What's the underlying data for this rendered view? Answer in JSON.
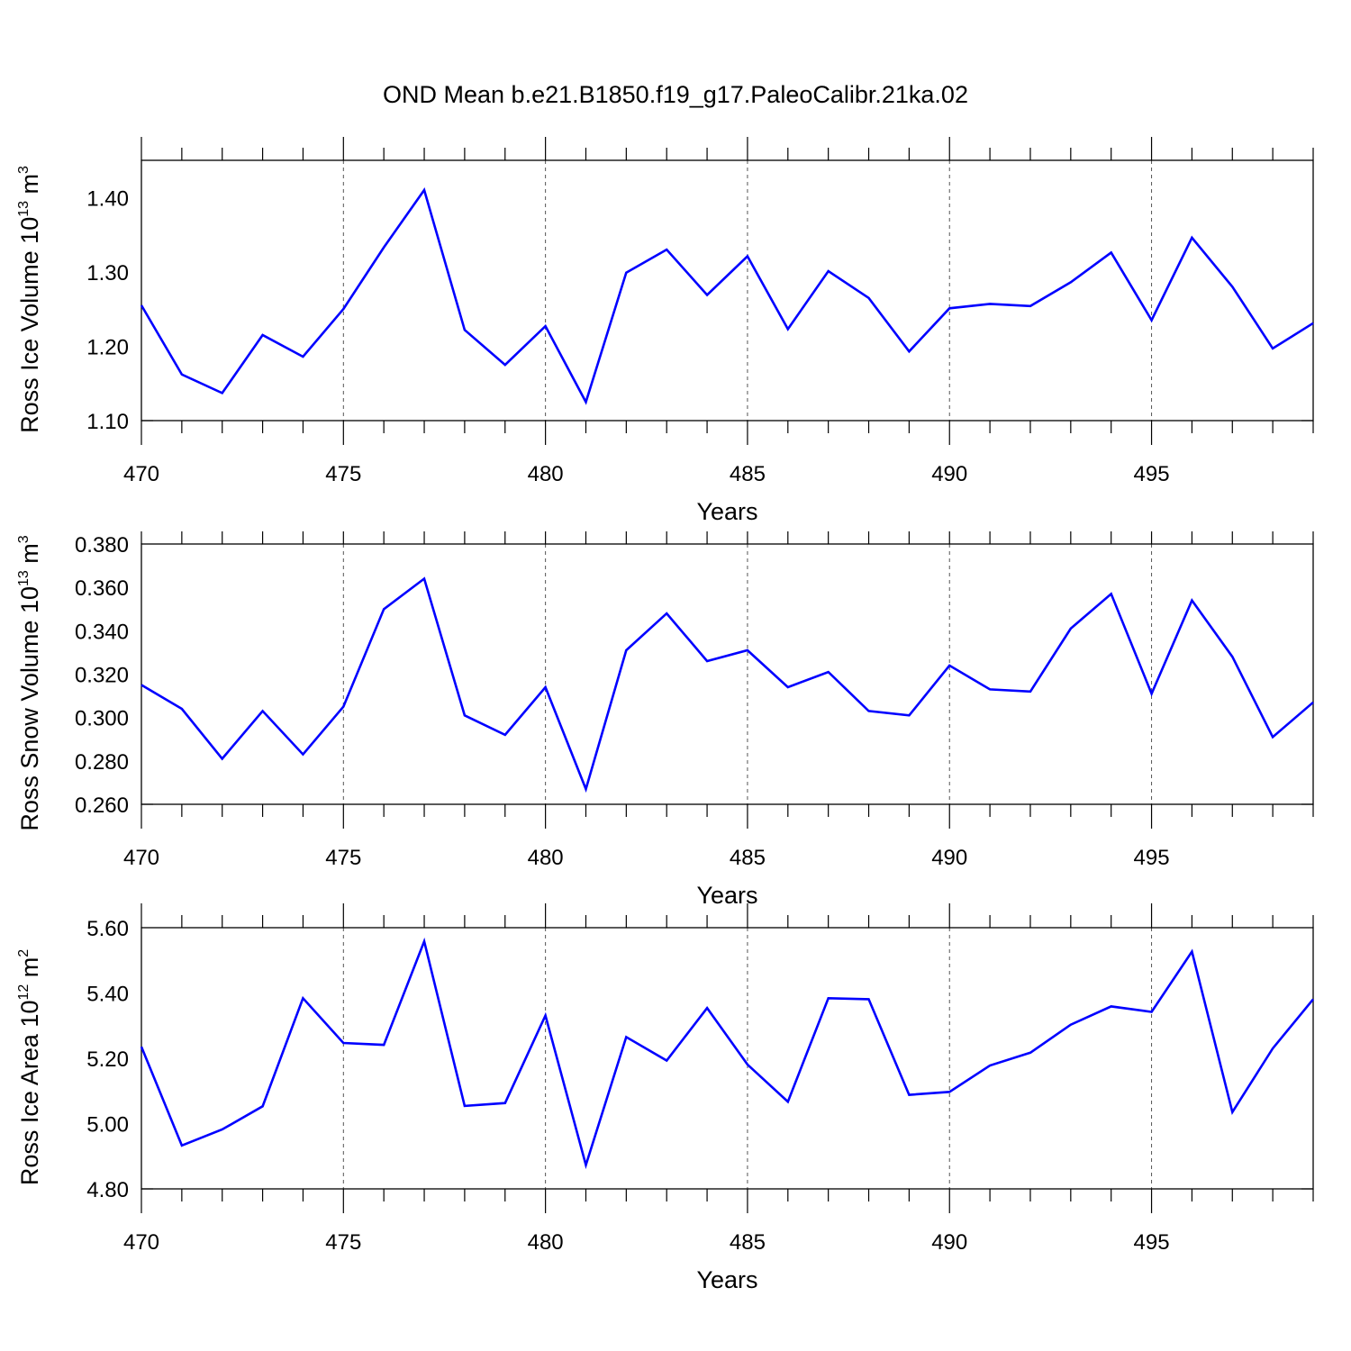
{
  "chart_data": [
    {
      "type": "line",
      "title": "OND Mean b.e21.B1850.f19_g17.PaleoCalibr.21ka.02",
      "xlabel": "Years",
      "ylabel": {
        "text": "Ross Ice Volume 10",
        "exp": "13",
        "unit": " m",
        "unit_exp": "3"
      },
      "x": [
        470,
        471,
        472,
        473,
        474,
        475,
        476,
        477,
        478,
        479,
        480,
        481,
        482,
        483,
        484,
        485,
        486,
        487,
        488,
        489,
        490,
        491,
        492,
        493,
        494,
        495,
        496,
        497,
        498,
        499
      ],
      "series": [
        {
          "values": [
            1.255,
            1.162,
            1.137,
            1.215,
            1.186,
            1.25,
            1.333,
            1.41,
            1.222,
            1.175,
            1.227,
            1.125,
            1.299,
            1.33,
            1.269,
            1.321,
            1.223,
            1.301,
            1.265,
            1.193,
            1.251,
            1.257,
            1.254,
            1.286,
            1.326,
            1.235,
            1.346,
            1.28,
            1.197,
            1.231
          ],
          "color": "#0000ff"
        }
      ],
      "xlim": [
        470,
        499
      ],
      "ylim": [
        1.1,
        1.45
      ],
      "xticks": [
        470,
        475,
        480,
        485,
        490,
        495
      ],
      "xtick_labels": [
        "470",
        "475",
        "480",
        "485",
        "490",
        "495"
      ],
      "yticks": [
        1.1,
        1.2,
        1.3,
        1.4
      ],
      "ytick_labels": [
        "1.10",
        "1.20",
        "1.30",
        "1.40"
      ],
      "grid": "vertical dashed at major x ticks"
    },
    {
      "type": "line",
      "xlabel": "Years",
      "ylabel": {
        "text": "Ross Snow Volume 10",
        "exp": "13",
        "unit": " m",
        "unit_exp": "3"
      },
      "x": [
        470,
        471,
        472,
        473,
        474,
        475,
        476,
        477,
        478,
        479,
        480,
        481,
        482,
        483,
        484,
        485,
        486,
        487,
        488,
        489,
        490,
        491,
        492,
        493,
        494,
        495,
        496,
        497,
        498,
        499
      ],
      "series": [
        {
          "values": [
            0.315,
            0.304,
            0.281,
            0.303,
            0.283,
            0.305,
            0.35,
            0.364,
            0.301,
            0.292,
            0.314,
            0.267,
            0.331,
            0.348,
            0.326,
            0.331,
            0.314,
            0.321,
            0.303,
            0.301,
            0.324,
            0.313,
            0.312,
            0.341,
            0.357,
            0.311,
            0.354,
            0.328,
            0.291,
            0.307
          ],
          "color": "#0000ff"
        }
      ],
      "xlim": [
        470,
        499
      ],
      "ylim": [
        0.26,
        0.38
      ],
      "xticks": [
        470,
        475,
        480,
        485,
        490,
        495
      ],
      "xtick_labels": [
        "470",
        "475",
        "480",
        "485",
        "490",
        "495"
      ],
      "yticks": [
        0.26,
        0.28,
        0.3,
        0.32,
        0.34,
        0.36,
        0.38
      ],
      "ytick_labels": [
        "0.260",
        "0.280",
        "0.300",
        "0.320",
        "0.340",
        "0.360",
        "0.380"
      ],
      "grid": "vertical dashed at major x ticks"
    },
    {
      "type": "line",
      "xlabel": "Years",
      "ylabel": {
        "text": "Ross Ice Area 10",
        "exp": "12",
        "unit": " m",
        "unit_exp": "2"
      },
      "x": [
        470,
        471,
        472,
        473,
        474,
        475,
        476,
        477,
        478,
        479,
        480,
        481,
        482,
        483,
        484,
        485,
        486,
        487,
        488,
        489,
        490,
        491,
        492,
        493,
        494,
        495,
        496,
        497,
        498,
        499
      ],
      "series": [
        {
          "values": [
            5.235,
            4.933,
            4.982,
            5.053,
            5.384,
            5.247,
            5.241,
            5.558,
            5.054,
            5.063,
            5.331,
            4.873,
            5.265,
            5.193,
            5.354,
            5.181,
            5.067,
            5.384,
            5.381,
            5.088,
            5.097,
            5.178,
            5.217,
            5.303,
            5.359,
            5.342,
            5.527,
            5.035,
            5.23,
            5.381
          ],
          "color": "#0000ff"
        }
      ],
      "xlim": [
        470,
        499
      ],
      "ylim": [
        4.8,
        5.6
      ],
      "xticks": [
        470,
        475,
        480,
        485,
        490,
        495
      ],
      "xtick_labels": [
        "470",
        "475",
        "480",
        "485",
        "490",
        "495"
      ],
      "yticks": [
        4.8,
        5.0,
        5.2,
        5.4,
        5.6
      ],
      "ytick_labels": [
        "4.80",
        "5.00",
        "5.20",
        "5.40",
        "5.60"
      ],
      "grid": "vertical dashed at major x ticks"
    }
  ]
}
